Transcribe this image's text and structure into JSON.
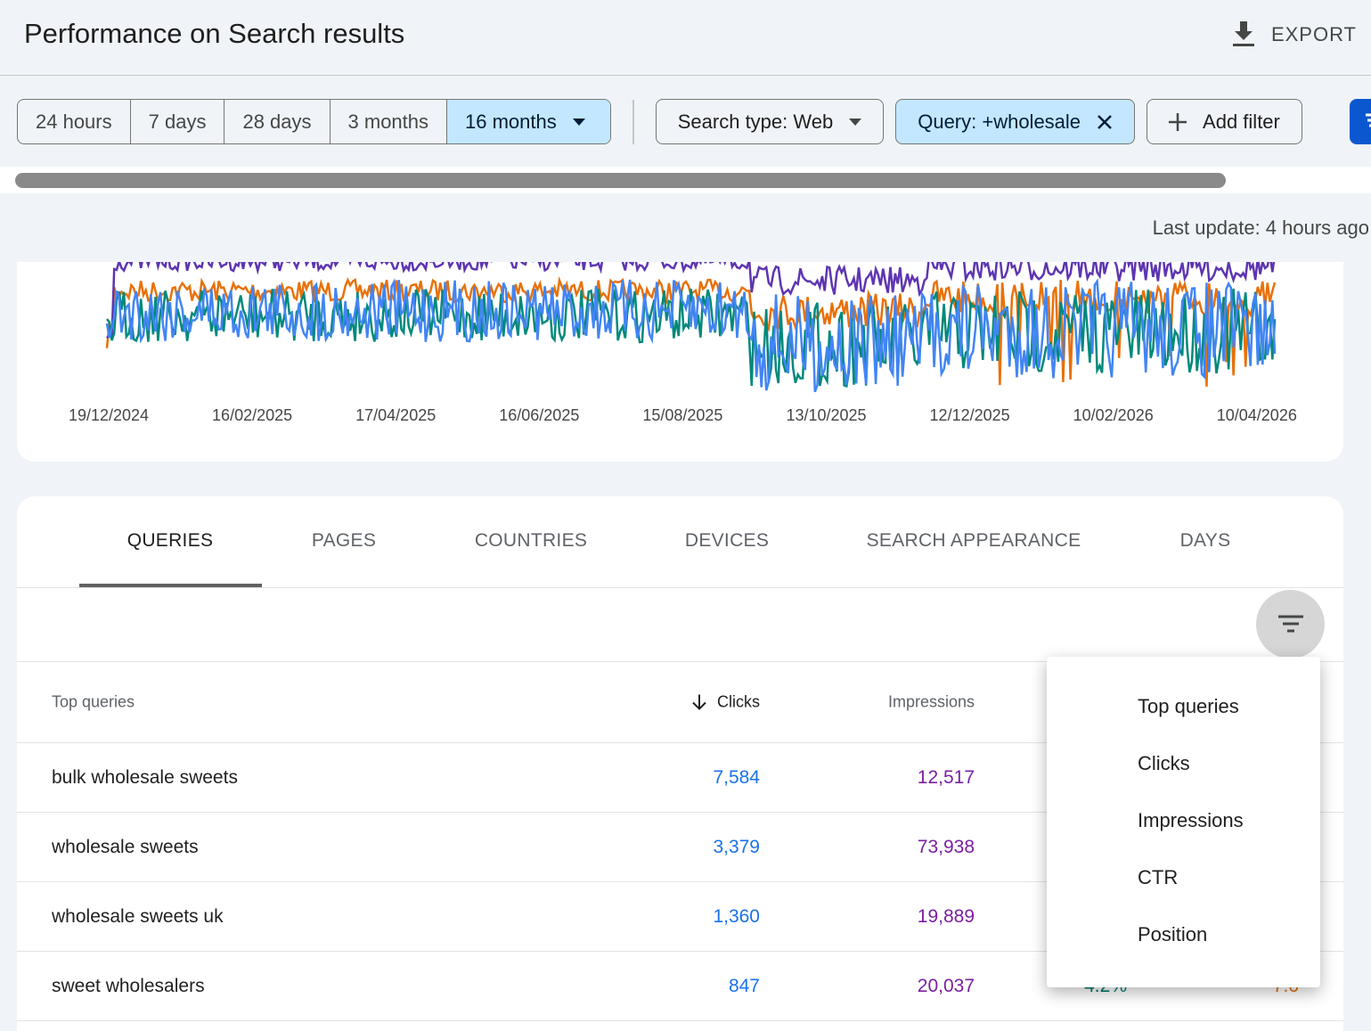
{
  "header": {
    "title": "Performance on Search results",
    "export_label": "EXPORT"
  },
  "filters": {
    "date_ranges": [
      "24 hours",
      "7 days",
      "28 days",
      "3 months",
      "16 months"
    ],
    "selected_range": "16 months",
    "search_type": "Search type: Web",
    "query_filter": "Query: +wholesale",
    "add_filter": "Add filter"
  },
  "last_update": "Last update: 4 hours ago",
  "chart": {
    "x_ticks": [
      "19/12/2024",
      "16/02/2025",
      "17/04/2025",
      "16/06/2025",
      "15/08/2025",
      "13/10/2025",
      "12/12/2025",
      "10/02/2026",
      "10/04/2026"
    ],
    "series_colors": {
      "clicks": "#4285f4",
      "impressions": "#5e35b1",
      "ctr": "#00897b",
      "position": "#e8710a"
    }
  },
  "tabs": [
    {
      "label": "QUERIES",
      "active": true
    },
    {
      "label": "PAGES"
    },
    {
      "label": "COUNTRIES"
    },
    {
      "label": "DEVICES"
    },
    {
      "label": "SEARCH APPEARANCE"
    },
    {
      "label": "DAYS"
    }
  ],
  "table": {
    "headers": {
      "query": "Top queries",
      "clicks": "Clicks",
      "impressions": "Impressions"
    },
    "rows": [
      {
        "query": "bulk wholesale sweets",
        "clicks": "7,584",
        "impressions": "12,517"
      },
      {
        "query": "wholesale sweets",
        "clicks": "3,379",
        "impressions": "73,938"
      },
      {
        "query": "wholesale sweets uk",
        "clicks": "1,360",
        "impressions": "19,889"
      },
      {
        "query": "sweet wholesalers",
        "clicks": "847",
        "impressions": "20,037",
        "ctr": "4.2%",
        "position": "7.6"
      }
    ]
  },
  "menu": {
    "items": [
      "Top queries",
      "Clicks",
      "Impressions",
      "CTR",
      "Position"
    ]
  }
}
